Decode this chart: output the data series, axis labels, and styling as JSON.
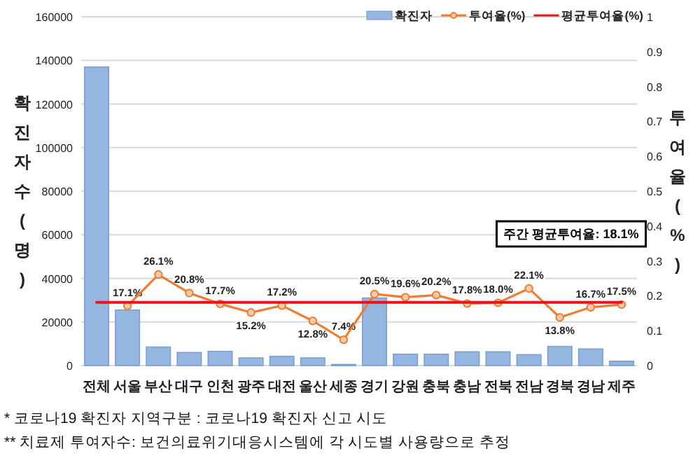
{
  "chart_data": {
    "type": "bar",
    "categories": [
      "전체",
      "서울",
      "부산",
      "대구",
      "인천",
      "광주",
      "대전",
      "울산",
      "세종",
      "경기",
      "강원",
      "충북",
      "충남",
      "전북",
      "전남",
      "경북",
      "경남",
      "제주"
    ],
    "ylabel": "확진자수(명)",
    "y2label": "투여율(%)",
    "series": [
      {
        "name": "확진자",
        "color": "#95b6e0",
        "values": [
          137000,
          25500,
          8500,
          6000,
          6500,
          3500,
          4200,
          3500,
          500,
          31000,
          5200,
          5200,
          6300,
          6300,
          5000,
          8800,
          7600,
          2000
        ]
      },
      {
        "name": "투여율(%)",
        "type": "line",
        "axis": "y2",
        "color": "#ed7d31",
        "marker": "circle",
        "values": [
          null,
          0.171,
          0.261,
          0.208,
          0.177,
          0.152,
          0.172,
          0.128,
          0.074,
          0.205,
          0.196,
          0.202,
          0.178,
          0.18,
          0.221,
          0.138,
          0.167,
          0.175
        ],
        "value_labels": [
          null,
          "17.1%",
          "26.1%",
          "20.8%",
          "17.7%",
          "15.2%",
          "17.2%",
          "12.8%",
          "7.4%",
          "20.5%",
          "19.6%",
          "20.2%",
          "17.8%",
          "18.0%",
          "22.1%",
          "13.8%",
          "16.7%",
          "17.5%"
        ]
      },
      {
        "name": "평균투여율(%)",
        "type": "line",
        "axis": "y2",
        "color": "#e8141c",
        "marker": "none",
        "values": [
          0.181,
          0.181,
          0.181,
          0.181,
          0.181,
          0.181,
          0.181,
          0.181,
          0.181,
          0.181,
          0.181,
          0.181,
          0.181,
          0.181,
          0.181,
          0.181,
          0.181,
          0.181
        ]
      }
    ],
    "ylim": [
      0,
      160000
    ],
    "yticks": [
      0,
      20000,
      40000,
      60000,
      80000,
      100000,
      120000,
      140000,
      160000
    ],
    "y2lim": [
      0,
      1
    ],
    "y2ticks": [
      0,
      0.1,
      0.2,
      0.3,
      0.4,
      0.5,
      0.6,
      0.7,
      0.8,
      0.9,
      1
    ],
    "grid": "y",
    "legend": "top right",
    "annotations": [
      "주간 평균투여율: 18.1%",
      "* 코로나19 확진자 지역구분 : 코로나19 확진자 신고 시도",
      "** 치료제 투여자수: 보건의료위기대응시스템에 각 시도별 사용량으로 추정"
    ]
  }
}
